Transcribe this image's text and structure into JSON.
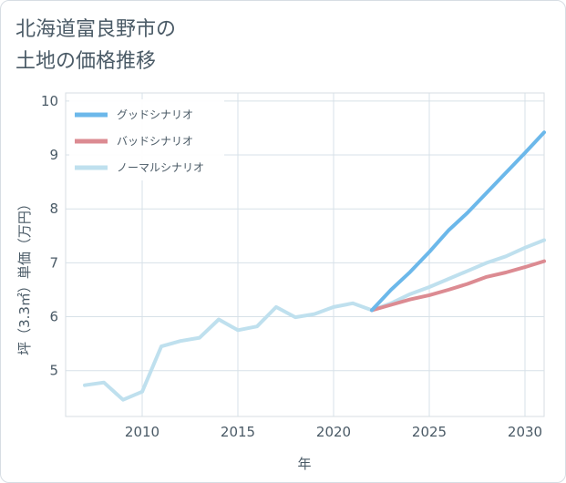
{
  "title_line1": "北海道富良野市の",
  "title_line2": "土地の価格推移",
  "chart_data": {
    "type": "line",
    "xlabel": "年",
    "ylabel": "坪（3.3㎡）単価（万円）",
    "xlim": [
      2006.0,
      2031.0
    ],
    "ylim": [
      4.15,
      10.15
    ],
    "xticks": [
      2010,
      2015,
      2020,
      2025,
      2030
    ],
    "xtick_labels": [
      "2010",
      "2015",
      "2020",
      "2025",
      "2030"
    ],
    "yticks": [
      5,
      6,
      7,
      8,
      9,
      10
    ],
    "ytick_labels": [
      "5",
      "6",
      "7",
      "8",
      "9",
      "10"
    ],
    "legend_position": "top-left",
    "series": [
      {
        "name": "グッドシナリオ",
        "color": "#6cb8ea",
        "x": [
          2022,
          2023,
          2024,
          2025,
          2026,
          2027,
          2028,
          2029,
          2030,
          2031
        ],
        "values": [
          6.12,
          6.5,
          6.83,
          7.2,
          7.6,
          7.93,
          8.3,
          8.67,
          9.04,
          9.42
        ]
      },
      {
        "name": "バッドシナリオ",
        "color": "#dc8b92",
        "x": [
          2022,
          2023,
          2024,
          2025,
          2026,
          2027,
          2028,
          2029,
          2030,
          2031
        ],
        "values": [
          6.12,
          6.22,
          6.32,
          6.4,
          6.5,
          6.61,
          6.74,
          6.82,
          6.92,
          7.03
        ]
      },
      {
        "name": "ノーマルシナリオ",
        "color": "#bfe0ee",
        "x": [
          2007,
          2008,
          2009,
          2010,
          2011,
          2012,
          2013,
          2014,
          2015,
          2016,
          2017,
          2018,
          2019,
          2020,
          2021,
          2022,
          2023,
          2024,
          2025,
          2026,
          2027,
          2028,
          2029,
          2030,
          2031
        ],
        "values": [
          4.73,
          4.78,
          4.46,
          4.61,
          5.45,
          5.55,
          5.61,
          5.95,
          5.75,
          5.82,
          6.18,
          5.99,
          6.05,
          6.18,
          6.25,
          6.12,
          6.25,
          6.42,
          6.55,
          6.7,
          6.85,
          7.0,
          7.12,
          7.28,
          7.42
        ]
      }
    ]
  }
}
